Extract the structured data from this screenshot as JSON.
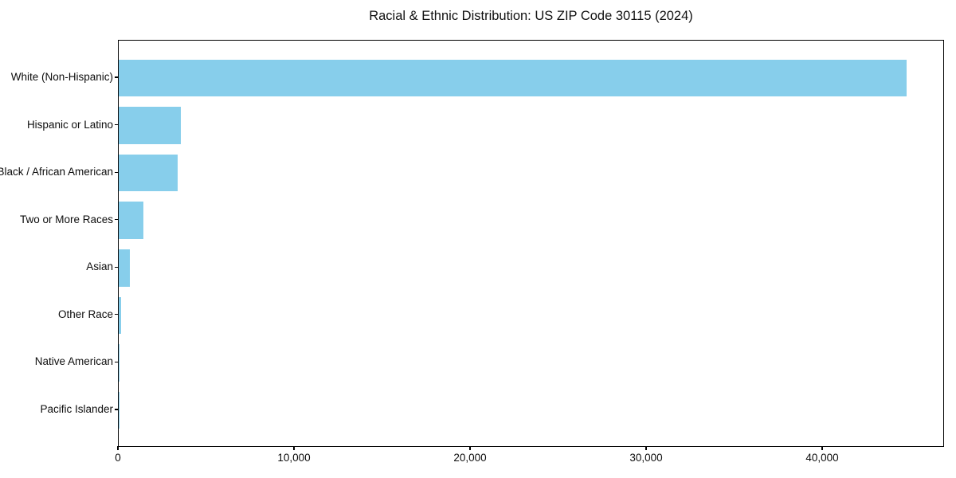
{
  "chart_data": {
    "type": "bar",
    "orientation": "horizontal",
    "title": "Racial & Ethnic Distribution: US ZIP Code 30115 (2024)",
    "categories": [
      "White (Non-Hispanic)",
      "Hispanic or Latino",
      "Black / African American",
      "Two or More Races",
      "Asian",
      "Other Race",
      "Native American",
      "Pacific Islander"
    ],
    "values": [
      44730,
      3510,
      3330,
      1390,
      620,
      120,
      25,
      10
    ],
    "xlabel": "",
    "ylabel": "",
    "xlim": [
      0,
      46920
    ],
    "x_ticks": [
      0,
      10000,
      20000,
      30000,
      40000
    ],
    "x_tick_labels": [
      "0",
      "10,000",
      "20,000",
      "30,000",
      "40,000"
    ],
    "bar_color": "#87CEEB",
    "axis_color": "#000000",
    "text_color": "#0d0d0d",
    "background_color": "#ffffff",
    "grid": false,
    "legend": null
  }
}
